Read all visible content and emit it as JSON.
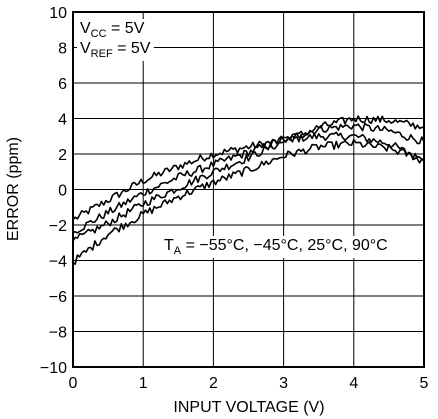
{
  "chart_data": {
    "type": "line",
    "xlabel": "INPUT VOLTAGE (V)",
    "ylabel": "ERROR (ppm)",
    "xlim": [
      0,
      5
    ],
    "ylim": [
      -10,
      10
    ],
    "x_ticks": [
      "0",
      "1",
      "2",
      "3",
      "4",
      "5"
    ],
    "y_ticks": [
      "10",
      "8",
      "6",
      "4",
      "2",
      "0",
      "−2",
      "−4",
      "−6",
      "−8",
      "−10"
    ],
    "grid": true,
    "annotations": {
      "vcc": {
        "main": "V",
        "sub": "CC",
        "rest": " = 5V"
      },
      "vref": {
        "main": "V",
        "sub": "REF",
        "rest": " = 5V"
      },
      "ta": {
        "main": "T",
        "sub": "A",
        "rest": " = −55°C, −45°C, 25°C, 90°C"
      }
    },
    "series": [
      {
        "values": [
          [
            0,
            -1.7
          ],
          [
            0.5,
            -0.6
          ],
          [
            1,
            0.5
          ],
          [
            1.5,
            1.3
          ],
          [
            2,
            2.0
          ],
          [
            2.5,
            2.4
          ],
          [
            3,
            2.8
          ],
          [
            3.5,
            3.0
          ],
          [
            4,
            3.0
          ],
          [
            4.5,
            2.6
          ],
          [
            5,
            1.6
          ]
        ]
      },
      {
        "values": [
          [
            0,
            -2.4
          ],
          [
            0.5,
            -1.3
          ],
          [
            1,
            -0.2
          ],
          [
            1.5,
            0.7
          ],
          [
            2,
            1.4
          ],
          [
            2.5,
            2.1
          ],
          [
            3,
            2.8
          ],
          [
            3.5,
            3.4
          ],
          [
            4,
            3.6
          ],
          [
            4.5,
            3.3
          ],
          [
            5,
            2.7
          ]
        ]
      },
      {
        "values": [
          [
            0,
            -2.9
          ],
          [
            0.5,
            -1.9
          ],
          [
            1,
            -0.8
          ],
          [
            1.5,
            0.1
          ],
          [
            2,
            1.0
          ],
          [
            2.5,
            1.8
          ],
          [
            3,
            2.7
          ],
          [
            3.5,
            3.5
          ],
          [
            4,
            4.0
          ],
          [
            4.5,
            3.9
          ],
          [
            5,
            3.5
          ]
        ]
      },
      {
        "values": [
          [
            0,
            -4.1
          ],
          [
            0.5,
            -2.5
          ],
          [
            1,
            -1.4
          ],
          [
            1.5,
            -0.4
          ],
          [
            2,
            0.4
          ],
          [
            2.5,
            1.1
          ],
          [
            3,
            1.9
          ],
          [
            3.5,
            2.4
          ],
          [
            4,
            2.6
          ],
          [
            4.5,
            2.3
          ],
          [
            5,
            1.7
          ]
        ]
      }
    ]
  }
}
